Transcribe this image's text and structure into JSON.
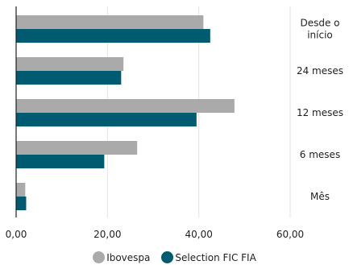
{
  "chart_data": {
    "type": "bar",
    "orientation": "horizontal",
    "categories": [
      "Desde o início",
      "24 meses",
      "12 meses",
      "6 meses",
      "Mês"
    ],
    "series": [
      {
        "name": "Ibovespa",
        "values": [
          41.0,
          23.5,
          47.8,
          26.5,
          2.0
        ],
        "color": "#aaaaaa"
      },
      {
        "name": "Selection FIC FIA",
        "values": [
          42.5,
          23.0,
          39.5,
          19.3,
          2.2
        ],
        "color": "#005a70"
      }
    ],
    "xlim": [
      0,
      60
    ],
    "x_ticks": [
      "0,00",
      "20,00",
      "40,00",
      "60,00"
    ],
    "grid": true,
    "legend_position": "bottom"
  }
}
